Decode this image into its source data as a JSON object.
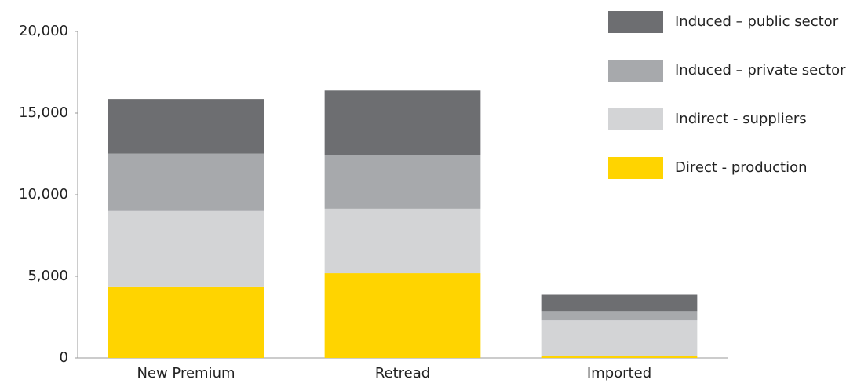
{
  "chart_data": {
    "type": "stacked_bar",
    "categories": [
      "New Premium",
      "Retread",
      "Imported"
    ],
    "series": [
      {
        "name": "Direct - production",
        "color": "#ffd400",
        "values": [
          4380,
          5190,
          100
        ]
      },
      {
        "name": "Indirect - suppliers",
        "color": "#d3d4d6",
        "values": [
          4620,
          3950,
          2200
        ]
      },
      {
        "name": "Induced – private sector",
        "color": "#a7a9ac",
        "values": [
          3520,
          3290,
          570
        ]
      },
      {
        "name": "Induced – public sector",
        "color": "#6d6e71",
        "values": [
          3340,
          3950,
          1000
        ]
      }
    ],
    "ylim": [
      0,
      20000
    ],
    "yticks": [
      0,
      {
        "value": 5000,
        "label": "5,000"
      },
      {
        "value": 10000,
        "label": "10,000"
      },
      {
        "value": 15000,
        "label": "15,000"
      },
      {
        "value": 20000,
        "label": "20,000"
      }
    ],
    "legend": "right"
  }
}
